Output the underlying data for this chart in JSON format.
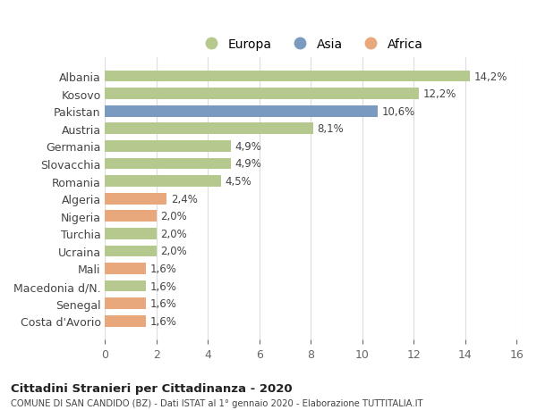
{
  "countries": [
    "Albania",
    "Kosovo",
    "Pakistan",
    "Austria",
    "Germania",
    "Slovacchia",
    "Romania",
    "Algeria",
    "Nigeria",
    "Turchia",
    "Ucraina",
    "Mali",
    "Macedonia d/N.",
    "Senegal",
    "Costa d'Avorio"
  ],
  "values": [
    14.2,
    12.2,
    10.6,
    8.1,
    4.9,
    4.9,
    4.5,
    2.4,
    2.0,
    2.0,
    2.0,
    1.6,
    1.6,
    1.6,
    1.6
  ],
  "labels": [
    "14,2%",
    "12,2%",
    "10,6%",
    "8,1%",
    "4,9%",
    "4,9%",
    "4,5%",
    "2,4%",
    "2,0%",
    "2,0%",
    "2,0%",
    "1,6%",
    "1,6%",
    "1,6%",
    "1,6%"
  ],
  "continents": [
    "Europa",
    "Europa",
    "Asia",
    "Europa",
    "Europa",
    "Europa",
    "Europa",
    "Africa",
    "Africa",
    "Europa",
    "Europa",
    "Africa",
    "Europa",
    "Africa",
    "Africa"
  ],
  "colors": {
    "Europa": "#b5c98e",
    "Asia": "#7a9abf",
    "Africa": "#e8a87c"
  },
  "xlim": [
    0,
    16
  ],
  "xticks": [
    0,
    2,
    4,
    6,
    8,
    10,
    12,
    14,
    16
  ],
  "title": "Cittadini Stranieri per Cittadinanza - 2020",
  "subtitle": "COMUNE DI SAN CANDIDO (BZ) - Dati ISTAT al 1° gennaio 2020 - Elaborazione TUTTITALIA.IT",
  "background_color": "#ffffff",
  "grid_color": "#dddddd",
  "bar_height": 0.65
}
